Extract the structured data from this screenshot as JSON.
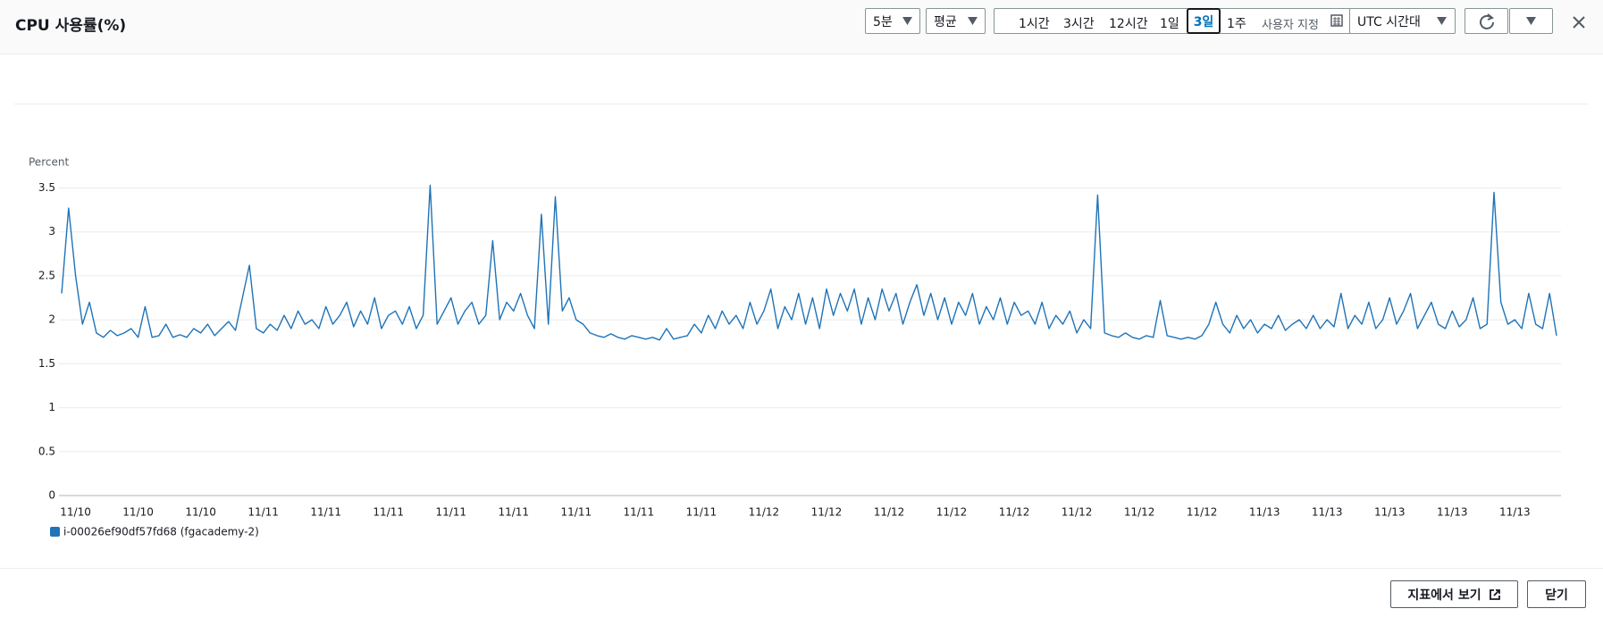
{
  "header": {
    "title": "CPU 사용률(%)",
    "period": "5분",
    "statistic": "평균",
    "ranges": [
      "1시간",
      "3시간",
      "12시간",
      "1일",
      "3일",
      "1주"
    ],
    "custom": "사용자 지정",
    "timezone": "UTC 시간대"
  },
  "footer": {
    "view_in_metrics": "지표에서 보기",
    "close": "닫기"
  },
  "chart_data": {
    "type": "line",
    "y_label": "Percent",
    "categories": [
      null,
      null,
      "11/10",
      null,
      null,
      null,
      null,
      null,
      null,
      null,
      null,
      "11/10",
      null,
      null,
      null,
      null,
      null,
      null,
      null,
      null,
      "11/10",
      null,
      null,
      null,
      null,
      null,
      null,
      null,
      null,
      "11/11",
      null,
      null,
      null,
      null,
      null,
      null,
      null,
      null,
      "11/11",
      null,
      null,
      null,
      null,
      null,
      null,
      null,
      null,
      "11/11",
      null,
      null,
      null,
      null,
      null,
      null,
      null,
      null,
      "11/11",
      null,
      null,
      null,
      null,
      null,
      null,
      null,
      null,
      "11/11",
      null,
      null,
      null,
      null,
      null,
      null,
      null,
      null,
      "11/11",
      null,
      null,
      null,
      null,
      null,
      null,
      null,
      null,
      "11/11",
      null,
      null,
      null,
      null,
      null,
      null,
      null,
      null,
      "11/11",
      null,
      null,
      null,
      null,
      null,
      null,
      null,
      null,
      "11/12",
      null,
      null,
      null,
      null,
      null,
      null,
      null,
      null,
      "11/12",
      null,
      null,
      null,
      null,
      null,
      null,
      null,
      null,
      "11/12",
      null,
      null,
      null,
      null,
      null,
      null,
      null,
      null,
      "11/12",
      null,
      null,
      null,
      null,
      null,
      null,
      null,
      null,
      "11/12",
      null,
      null,
      null,
      null,
      null,
      null,
      null,
      null,
      "11/12",
      null,
      null,
      null,
      null,
      null,
      null,
      null,
      null,
      "11/12",
      null,
      null,
      null,
      null,
      null,
      null,
      null,
      null,
      "11/12",
      null,
      null,
      null,
      null,
      null,
      null,
      null,
      null,
      "11/13",
      null,
      null,
      null,
      null,
      null,
      null,
      null,
      null,
      "11/13",
      null,
      null,
      null,
      null,
      null,
      null,
      null,
      null,
      "11/13",
      null,
      null,
      null,
      null,
      null,
      null,
      null,
      null,
      "11/13",
      null,
      null,
      null,
      null,
      null,
      null,
      null,
      null,
      "11/13",
      null,
      null,
      null,
      null,
      null,
      null
    ],
    "series": [
      {
        "name": "i-00026ef90df57fd68 (fgacademy-2)",
        "color": "#1f73b7",
        "values": [
          2.3,
          3.27,
          2.5,
          1.95,
          2.2,
          1.85,
          1.8,
          1.88,
          1.82,
          1.85,
          1.9,
          1.8,
          2.15,
          1.8,
          1.82,
          1.95,
          1.8,
          1.83,
          1.8,
          1.9,
          1.85,
          1.95,
          1.82,
          1.9,
          1.98,
          1.88,
          2.25,
          2.62,
          1.9,
          1.85,
          1.95,
          1.88,
          2.05,
          1.9,
          2.1,
          1.95,
          2.0,
          1.9,
          2.15,
          1.95,
          2.05,
          2.2,
          1.92,
          2.1,
          1.95,
          2.25,
          1.9,
          2.05,
          2.1,
          1.95,
          2.15,
          1.9,
          2.05,
          3.53,
          1.95,
          2.1,
          2.25,
          1.95,
          2.1,
          2.2,
          1.95,
          2.05,
          2.9,
          2.0,
          2.2,
          2.1,
          2.3,
          2.05,
          1.9,
          3.2,
          1.95,
          3.4,
          2.1,
          2.25,
          2.0,
          1.95,
          1.85,
          1.82,
          1.8,
          1.84,
          1.8,
          1.78,
          1.82,
          1.8,
          1.78,
          1.8,
          1.77,
          1.9,
          1.78,
          1.8,
          1.82,
          1.95,
          1.85,
          2.05,
          1.9,
          2.1,
          1.95,
          2.05,
          1.9,
          2.2,
          1.95,
          2.1,
          2.35,
          1.9,
          2.15,
          2.0,
          2.3,
          1.95,
          2.25,
          1.9,
          2.35,
          2.05,
          2.3,
          2.1,
          2.35,
          1.95,
          2.25,
          2.0,
          2.35,
          2.1,
          2.3,
          1.95,
          2.2,
          2.4,
          2.05,
          2.3,
          2.0,
          2.25,
          1.95,
          2.2,
          2.05,
          2.3,
          1.95,
          2.15,
          2.0,
          2.25,
          1.95,
          2.2,
          2.05,
          2.1,
          1.95,
          2.2,
          1.9,
          2.05,
          1.95,
          2.1,
          1.85,
          2.0,
          1.9,
          3.42,
          1.85,
          1.82,
          1.8,
          1.85,
          1.8,
          1.78,
          1.82,
          1.8,
          2.22,
          1.82,
          1.8,
          1.78,
          1.8,
          1.78,
          1.82,
          1.95,
          2.2,
          1.95,
          1.85,
          2.05,
          1.9,
          2.0,
          1.85,
          1.95,
          1.9,
          2.05,
          1.88,
          1.95,
          2.0,
          1.9,
          2.05,
          1.9,
          2.0,
          1.92,
          2.3,
          1.9,
          2.05,
          1.95,
          2.2,
          1.9,
          2.0,
          2.25,
          1.95,
          2.1,
          2.3,
          1.9,
          2.05,
          2.2,
          1.95,
          1.9,
          2.1,
          1.92,
          2.0,
          2.25,
          1.9,
          1.95,
          3.45,
          2.2,
          1.95,
          2.0,
          1.9,
          2.3,
          1.95,
          1.9,
          2.3,
          1.82
        ]
      }
    ],
    "ylim": [
      0,
      3.5
    ],
    "yticks": [
      0,
      0.5,
      1,
      1.5,
      2,
      2.5,
      3,
      3.5
    ],
    "grid": true
  }
}
